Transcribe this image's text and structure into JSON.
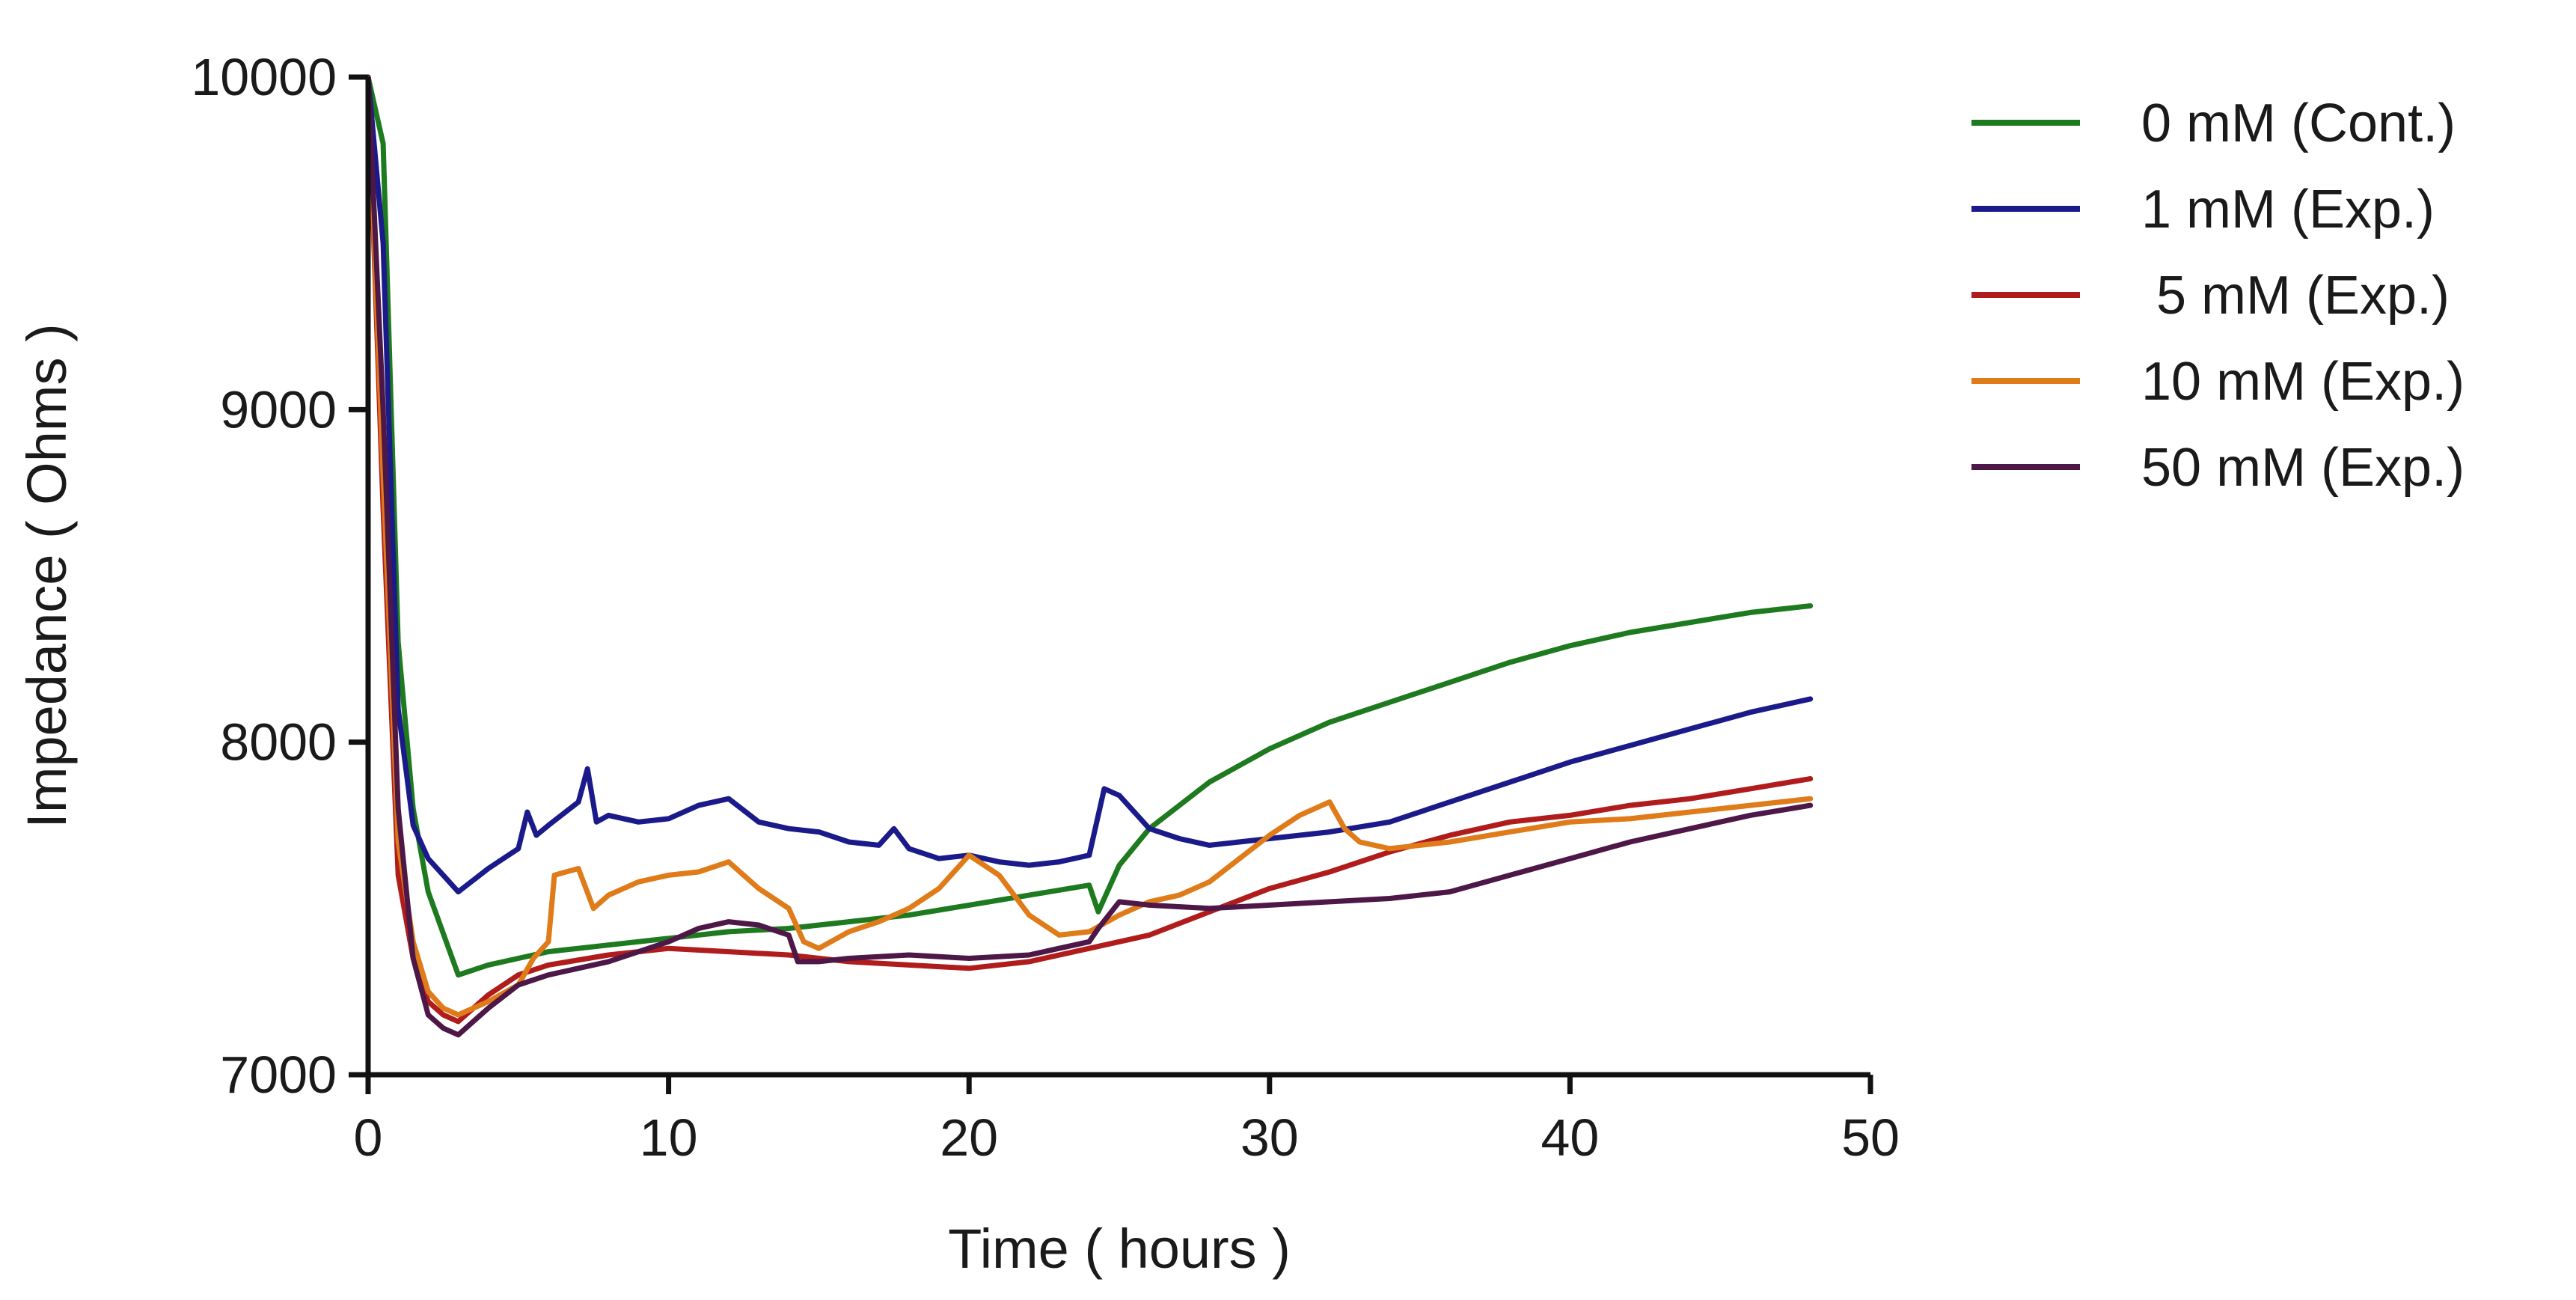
{
  "chart_data": {
    "type": "line",
    "title": "",
    "xlabel": "Time ( hours )",
    "ylabel": "Impedance ( Ohms )",
    "xlim": [
      0,
      50
    ],
    "ylim": [
      7000,
      10000
    ],
    "xticks": [
      0,
      10,
      20,
      30,
      40,
      50
    ],
    "yticks": [
      7000,
      8000,
      9000,
      10000
    ],
    "xtick_labels": [
      "0",
      "10",
      "20",
      "30",
      "40",
      "50"
    ],
    "ytick_labels": [
      "7000",
      "8000",
      "9000",
      "10000"
    ],
    "grid": false,
    "legend_position": "right-top",
    "series": [
      {
        "name": "0 mM (Cont.)",
        "color": "#1e7a1e",
        "x": [
          0,
          0.5,
          1,
          1.5,
          2,
          3,
          4,
          5,
          6,
          8,
          10,
          12,
          14,
          16,
          18,
          20,
          22,
          24,
          24.3,
          25,
          26,
          28,
          30,
          32,
          34,
          36,
          38,
          40,
          42,
          44,
          46,
          48
        ],
        "y": [
          10000,
          9800,
          8300,
          7800,
          7550,
          7300,
          7330,
          7350,
          7370,
          7390,
          7410,
          7430,
          7440,
          7460,
          7480,
          7510,
          7540,
          7570,
          7490,
          7630,
          7740,
          7880,
          7980,
          8060,
          8120,
          8180,
          8240,
          8290,
          8330,
          8360,
          8390,
          8410
        ]
      },
      {
        "name": "1 mM (Exp.)",
        "color": "#1a1a8a",
        "x": [
          0,
          0.5,
          1,
          1.5,
          2,
          2.5,
          3,
          4,
          5,
          5.3,
          5.6,
          6,
          7,
          7.3,
          7.6,
          8,
          9,
          10,
          11,
          12,
          13,
          14,
          15,
          16,
          17,
          17.5,
          18,
          19,
          20,
          21,
          22,
          23,
          24,
          24.5,
          25,
          26,
          27,
          28,
          30,
          32,
          34,
          36,
          38,
          40,
          42,
          44,
          46,
          48
        ],
        "y": [
          10000,
          9500,
          8100,
          7750,
          7650,
          7600,
          7550,
          7620,
          7680,
          7790,
          7720,
          7750,
          7820,
          7920,
          7760,
          7780,
          7760,
          7770,
          7810,
          7830,
          7760,
          7740,
          7730,
          7700,
          7690,
          7740,
          7680,
          7650,
          7660,
          7640,
          7630,
          7640,
          7660,
          7860,
          7840,
          7740,
          7710,
          7690,
          7710,
          7730,
          7760,
          7820,
          7880,
          7940,
          7990,
          8040,
          8090,
          8130
        ]
      },
      {
        "name": " 5 mM (Exp.)",
        "color": "#b01c1c",
        "x": [
          0,
          0.5,
          1,
          1.5,
          2,
          2.5,
          3,
          4,
          5,
          6,
          8,
          10,
          12,
          14,
          16,
          18,
          20,
          22,
          24,
          26,
          28,
          30,
          32,
          34,
          36,
          38,
          40,
          42,
          44,
          46,
          48
        ],
        "y": [
          10000,
          8700,
          7600,
          7350,
          7220,
          7180,
          7160,
          7240,
          7300,
          7330,
          7360,
          7380,
          7370,
          7360,
          7340,
          7330,
          7320,
          7340,
          7380,
          7420,
          7490,
          7560,
          7610,
          7670,
          7720,
          7760,
          7780,
          7810,
          7830,
          7860,
          7890
        ]
      },
      {
        "name": "10 mM (Exp.)",
        "color": "#e07b1a",
        "x": [
          0,
          0.5,
          1,
          1.5,
          2,
          2.5,
          3,
          4,
          5,
          5.5,
          6,
          6.2,
          7,
          7.5,
          8,
          9,
          10,
          11,
          12,
          13,
          14,
          14.5,
          15,
          16,
          17,
          18,
          19,
          20,
          21,
          22,
          23,
          24,
          25,
          26,
          27,
          28,
          29,
          30,
          31,
          32,
          32.5,
          33,
          34,
          36,
          38,
          40,
          42,
          44,
          46,
          48
        ],
        "y": [
          10000,
          8800,
          7700,
          7400,
          7250,
          7200,
          7180,
          7220,
          7270,
          7350,
          7400,
          7600,
          7620,
          7500,
          7540,
          7580,
          7600,
          7610,
          7640,
          7560,
          7500,
          7400,
          7380,
          7430,
          7460,
          7500,
          7560,
          7660,
          7600,
          7480,
          7420,
          7430,
          7480,
          7520,
          7540,
          7580,
          7650,
          7720,
          7780,
          7820,
          7740,
          7700,
          7680,
          7700,
          7730,
          7760,
          7770,
          7790,
          7810,
          7830
        ]
      },
      {
        "name": "50 mM (Exp.)",
        "color": "#4d1747",
        "x": [
          0,
          0.5,
          1,
          1.5,
          2,
          2.5,
          3,
          4,
          5,
          6,
          8,
          10,
          11,
          12,
          13,
          14,
          14.3,
          15,
          16,
          18,
          20,
          22,
          24,
          24.3,
          25,
          26,
          28,
          30,
          32,
          34,
          36,
          38,
          40,
          42,
          44,
          46,
          48
        ],
        "y": [
          10000,
          9000,
          7800,
          7350,
          7180,
          7140,
          7120,
          7200,
          7270,
          7300,
          7340,
          7400,
          7440,
          7460,
          7450,
          7420,
          7340,
          7340,
          7350,
          7360,
          7350,
          7360,
          7400,
          7440,
          7520,
          7510,
          7500,
          7510,
          7520,
          7530,
          7550,
          7600,
          7650,
          7700,
          7740,
          7780,
          7810
        ]
      }
    ]
  }
}
